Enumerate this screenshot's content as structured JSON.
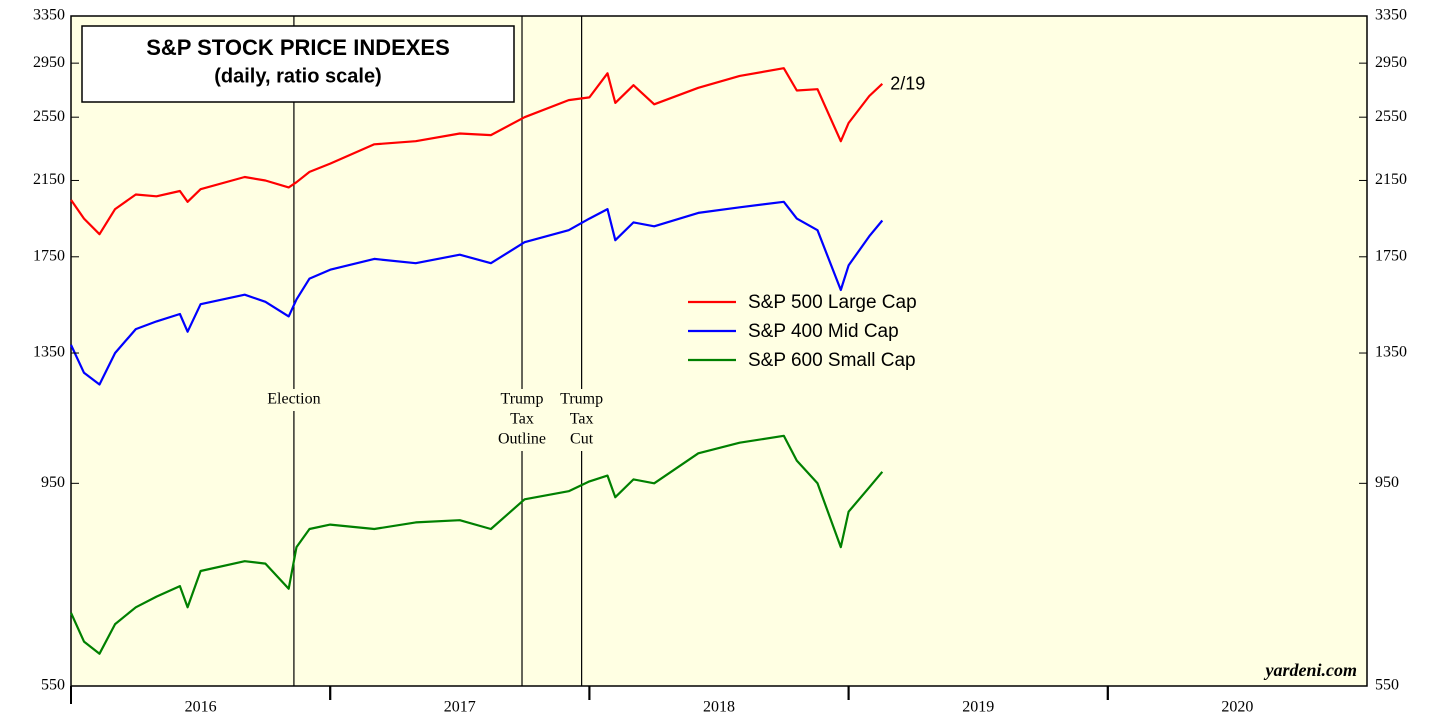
{
  "chart_data": {
    "type": "line",
    "title": "S&P STOCK PRICE INDEXES",
    "subtitle": "(daily, ratio scale)",
    "log_scale": true,
    "x": [
      2016.0,
      2016.05,
      2016.11,
      2016.17,
      2016.25,
      2016.33,
      2016.42,
      2016.45,
      2016.5,
      2016.67,
      2016.75,
      2016.84,
      2016.87,
      2016.92,
      2017.0,
      2017.17,
      2017.33,
      2017.5,
      2017.62,
      2017.75,
      2017.92,
      2018.0,
      2018.07,
      2018.1,
      2018.17,
      2018.25,
      2018.42,
      2018.58,
      2018.75,
      2018.8,
      2018.88,
      2018.97,
      2019.0,
      2019.08,
      2019.13
    ],
    "series": [
      {
        "name": "S&P 500 Large Cap",
        "color": "#ff0000",
        "values": [
          2040,
          1940,
          1860,
          1990,
          2070,
          2060,
          2090,
          2030,
          2100,
          2170,
          2150,
          2110,
          2140,
          2200,
          2250,
          2370,
          2390,
          2440,
          2430,
          2550,
          2670,
          2690,
          2870,
          2650,
          2780,
          2640,
          2760,
          2850,
          2910,
          2740,
          2750,
          2390,
          2510,
          2700,
          2790
        ]
      },
      {
        "name": "S&P 400 Mid Cap",
        "color": "#0000ff",
        "values": [
          1380,
          1280,
          1240,
          1350,
          1440,
          1470,
          1500,
          1430,
          1540,
          1580,
          1550,
          1490,
          1560,
          1650,
          1690,
          1740,
          1720,
          1760,
          1720,
          1820,
          1880,
          1940,
          1990,
          1830,
          1920,
          1900,
          1970,
          2000,
          2030,
          1940,
          1880,
          1600,
          1710,
          1850,
          1930
        ]
      },
      {
        "name": "S&P 600 Small Cap",
        "color": "#008000",
        "values": [
          670,
          620,
          600,
          650,
          680,
          700,
          720,
          680,
          750,
          770,
          765,
          715,
          800,
          840,
          850,
          840,
          855,
          860,
          840,
          910,
          930,
          955,
          970,
          915,
          960,
          950,
          1030,
          1060,
          1080,
          1010,
          950,
          800,
          880,
          940,
          980
        ]
      }
    ],
    "xlim": [
      2016,
      2021
    ],
    "xticks": [
      {
        "value": 2016.5,
        "label": "2016"
      },
      {
        "value": 2017.5,
        "label": "2017"
      },
      {
        "value": 2018.5,
        "label": "2018"
      },
      {
        "value": 2019.5,
        "label": "2019"
      },
      {
        "value": 2020.5,
        "label": "2020"
      }
    ],
    "ylim": [
      550,
      3350
    ],
    "yticks": [
      550,
      950,
      1350,
      1750,
      2150,
      2550,
      2950,
      3350
    ],
    "events": [
      {
        "x": 2016.86,
        "label": [
          "Election"
        ]
      },
      {
        "x": 2017.74,
        "label": [
          "Trump",
          "Tax",
          "Outline"
        ]
      },
      {
        "x": 2017.97,
        "label": [
          "Trump",
          "Tax",
          "Cut"
        ]
      }
    ],
    "end_label": "2/19",
    "credit": "yardeni.com",
    "legend": "center"
  }
}
